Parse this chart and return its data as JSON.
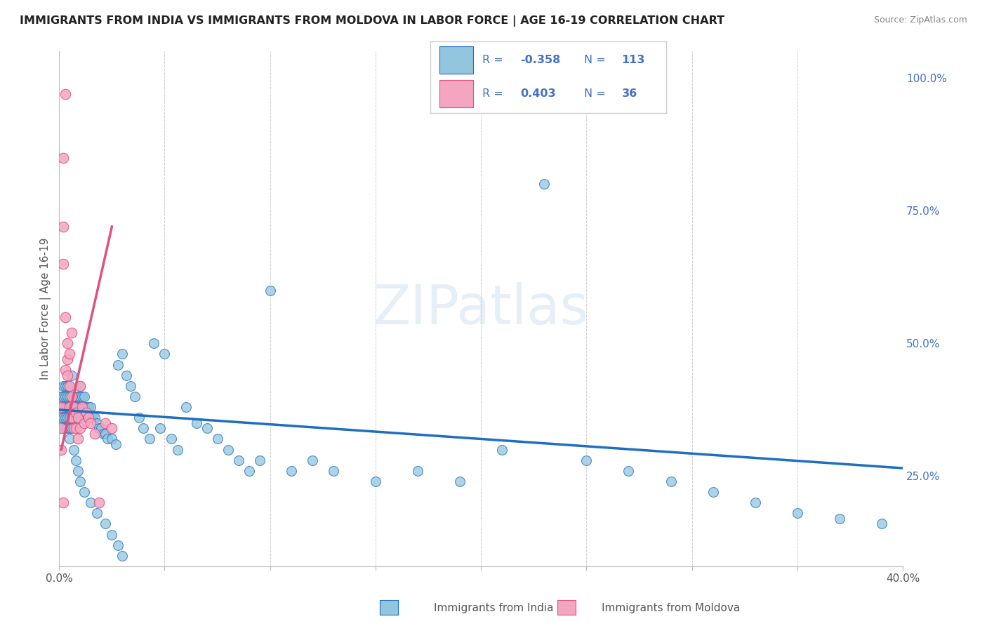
{
  "title": "IMMIGRANTS FROM INDIA VS IMMIGRANTS FROM MOLDOVA IN LABOR FORCE | AGE 16-19 CORRELATION CHART",
  "source": "Source: ZipAtlas.com",
  "ylabel": "In Labor Force | Age 16-19",
  "xlim": [
    0.0,
    0.4
  ],
  "ylim": [
    0.08,
    1.05
  ],
  "xticks": [
    0.0,
    0.05,
    0.1,
    0.15,
    0.2,
    0.25,
    0.3,
    0.35,
    0.4
  ],
  "xticklabels": [
    "0.0%",
    "",
    "",
    "",
    "",
    "",
    "",
    "",
    "40.0%"
  ],
  "yticks_right": [
    0.25,
    0.5,
    0.75,
    1.0
  ],
  "ytick_right_labels": [
    "25.0%",
    "50.0%",
    "75.0%",
    "100.0%"
  ],
  "R_india": -0.358,
  "N_india": 113,
  "R_moldova": 0.403,
  "N_moldova": 36,
  "color_india": "#92c5de",
  "color_moldova": "#f4a6c0",
  "color_india_line": "#1f6fbf",
  "color_moldova_line": "#e05080",
  "color_moldova_dash": "#e8a0b8",
  "watermark": "ZIPatlas",
  "legend_r1": "-0.358",
  "legend_n1": "113",
  "legend_r2": "0.403",
  "legend_n2": "36",
  "legend_color": "#4472c4",
  "india_x": [
    0.001,
    0.001,
    0.001,
    0.002,
    0.002,
    0.002,
    0.002,
    0.002,
    0.003,
    0.003,
    0.003,
    0.003,
    0.003,
    0.004,
    0.004,
    0.004,
    0.004,
    0.004,
    0.005,
    0.005,
    0.005,
    0.005,
    0.005,
    0.006,
    0.006,
    0.006,
    0.006,
    0.007,
    0.007,
    0.007,
    0.007,
    0.008,
    0.008,
    0.008,
    0.008,
    0.009,
    0.009,
    0.009,
    0.01,
    0.01,
    0.01,
    0.01,
    0.011,
    0.011,
    0.012,
    0.012,
    0.013,
    0.013,
    0.014,
    0.014,
    0.015,
    0.015,
    0.016,
    0.017,
    0.018,
    0.019,
    0.02,
    0.021,
    0.022,
    0.023,
    0.025,
    0.027,
    0.028,
    0.03,
    0.032,
    0.034,
    0.036,
    0.038,
    0.04,
    0.043,
    0.045,
    0.048,
    0.05,
    0.053,
    0.056,
    0.06,
    0.065,
    0.07,
    0.075,
    0.08,
    0.085,
    0.09,
    0.095,
    0.1,
    0.11,
    0.12,
    0.13,
    0.15,
    0.17,
    0.19,
    0.21,
    0.23,
    0.25,
    0.27,
    0.29,
    0.31,
    0.33,
    0.35,
    0.37,
    0.39,
    0.005,
    0.006,
    0.007,
    0.008,
    0.009,
    0.01,
    0.012,
    0.015,
    0.018,
    0.022,
    0.025,
    0.028,
    0.03
  ],
  "india_y": [
    0.4,
    0.38,
    0.36,
    0.42,
    0.4,
    0.38,
    0.36,
    0.34,
    0.42,
    0.4,
    0.38,
    0.36,
    0.34,
    0.42,
    0.4,
    0.38,
    0.36,
    0.34,
    0.42,
    0.4,
    0.38,
    0.36,
    0.34,
    0.4,
    0.38,
    0.36,
    0.34,
    0.4,
    0.38,
    0.36,
    0.34,
    0.4,
    0.38,
    0.36,
    0.34,
    0.4,
    0.38,
    0.36,
    0.42,
    0.4,
    0.38,
    0.36,
    0.4,
    0.38,
    0.4,
    0.38,
    0.38,
    0.36,
    0.38,
    0.36,
    0.38,
    0.36,
    0.36,
    0.36,
    0.35,
    0.34,
    0.34,
    0.33,
    0.33,
    0.32,
    0.32,
    0.31,
    0.46,
    0.48,
    0.44,
    0.42,
    0.4,
    0.36,
    0.34,
    0.32,
    0.5,
    0.34,
    0.48,
    0.32,
    0.3,
    0.38,
    0.35,
    0.34,
    0.32,
    0.3,
    0.28,
    0.26,
    0.28,
    0.6,
    0.26,
    0.28,
    0.26,
    0.24,
    0.26,
    0.24,
    0.3,
    0.8,
    0.28,
    0.26,
    0.24,
    0.22,
    0.2,
    0.18,
    0.17,
    0.16,
    0.32,
    0.44,
    0.3,
    0.28,
    0.26,
    0.24,
    0.22,
    0.2,
    0.18,
    0.16,
    0.14,
    0.12,
    0.1
  ],
  "moldova_x": [
    0.001,
    0.001,
    0.002,
    0.002,
    0.002,
    0.003,
    0.003,
    0.003,
    0.004,
    0.004,
    0.004,
    0.005,
    0.005,
    0.005,
    0.006,
    0.006,
    0.006,
    0.007,
    0.007,
    0.008,
    0.008,
    0.009,
    0.009,
    0.01,
    0.01,
    0.011,
    0.012,
    0.013,
    0.014,
    0.015,
    0.017,
    0.019,
    0.022,
    0.025,
    0.001,
    0.002
  ],
  "moldova_y": [
    0.38,
    0.34,
    0.85,
    0.72,
    0.65,
    0.97,
    0.55,
    0.45,
    0.5,
    0.47,
    0.44,
    0.48,
    0.42,
    0.38,
    0.52,
    0.4,
    0.36,
    0.38,
    0.34,
    0.37,
    0.34,
    0.36,
    0.32,
    0.34,
    0.42,
    0.38,
    0.35,
    0.37,
    0.36,
    0.35,
    0.33,
    0.2,
    0.35,
    0.34,
    0.3,
    0.2
  ]
}
